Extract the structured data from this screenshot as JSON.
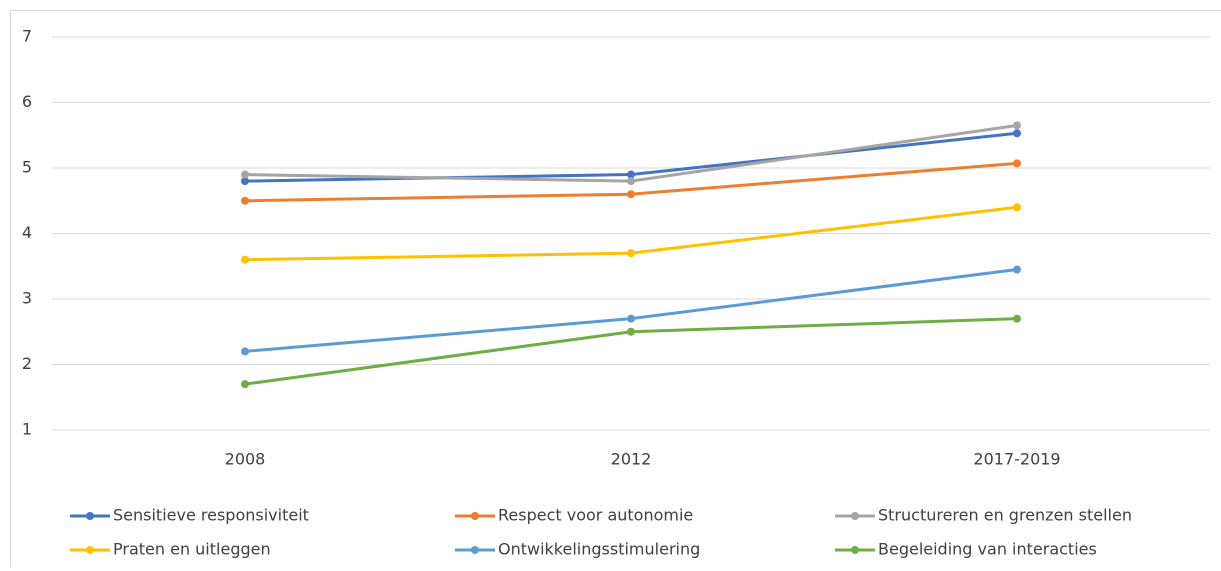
{
  "chart_data": {
    "type": "line",
    "categories": [
      "2008",
      "2012",
      "2017-2019"
    ],
    "series": [
      {
        "name": "Sensitieve responsiviteit",
        "color": "#4472c4",
        "values": [
          4.8,
          4.9,
          5.53
        ]
      },
      {
        "name": "Respect voor autonomie",
        "color": "#ed7d31",
        "values": [
          4.5,
          4.6,
          5.07
        ]
      },
      {
        "name": "Structureren en grenzen stellen",
        "color": "#a5a5a5",
        "values": [
          4.9,
          4.8,
          5.65
        ]
      },
      {
        "name": "Praten en uitleggen",
        "color": "#ffc000",
        "values": [
          3.6,
          3.7,
          4.4
        ]
      },
      {
        "name": "Ontwikkelingsstimulering",
        "color": "#5b9bd5",
        "values": [
          2.2,
          2.7,
          3.45
        ]
      },
      {
        "name": "Begeleiding van interacties",
        "color": "#70ad47",
        "values": [
          1.7,
          2.5,
          2.7
        ]
      }
    ],
    "ylim": [
      1,
      7
    ],
    "yticks": [
      1,
      2,
      3,
      4,
      5,
      6,
      7
    ],
    "grid": true,
    "legend": "bottom"
  }
}
